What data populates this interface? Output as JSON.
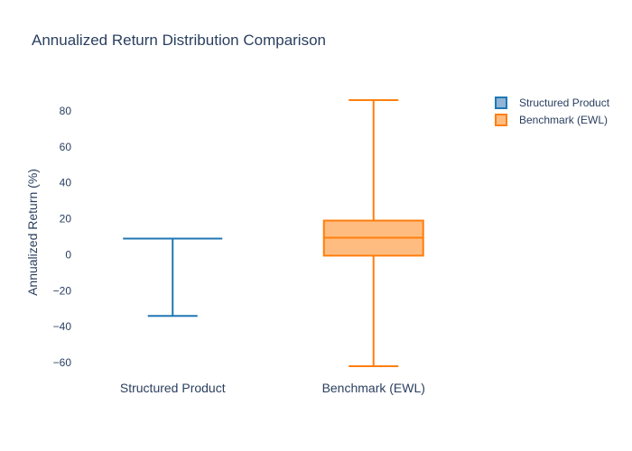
{
  "chart_data": {
    "type": "box",
    "title": "Annualized Return Distribution Comparison",
    "ylabel": "Annualized Return (%)",
    "xlabel": "",
    "ylim": [
      -65,
      90
    ],
    "yticks": [
      80,
      60,
      40,
      20,
      0,
      -20,
      -40,
      -60
    ],
    "grid": false,
    "legend_position": "top-right",
    "categories": [
      "Structured Product",
      "Benchmark (EWL)"
    ],
    "series": [
      {
        "name": "Structured Product",
        "color": "#1f77b4",
        "fill": "#8fb4d8",
        "min": -34,
        "q1": 9,
        "median": 9,
        "q3": 9,
        "max": 9
      },
      {
        "name": "Benchmark (EWL)",
        "color": "#ff7f0e",
        "fill": "#ffbc80",
        "min": -62,
        "q1": -0.5,
        "median": 9.5,
        "q3": 19,
        "max": 86
      }
    ]
  }
}
